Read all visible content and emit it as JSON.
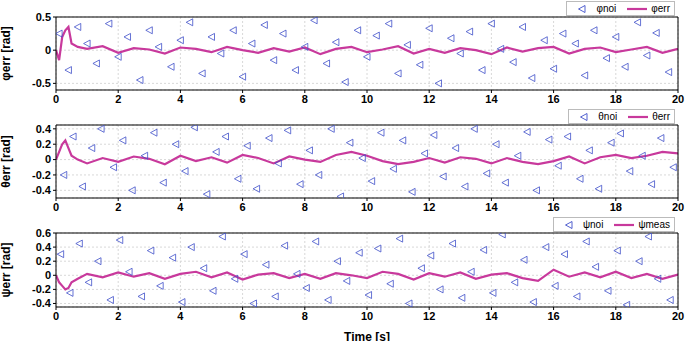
{
  "chart_data": [
    {
      "type": "line",
      "ylabel": "φerr [rad]",
      "xlim": [
        0,
        20
      ],
      "xticks": [
        0,
        2,
        4,
        6,
        8,
        10,
        12,
        14,
        16,
        18,
        20
      ],
      "ylim": [
        -0.6,
        0.5
      ],
      "yticks": [
        -0.5,
        0,
        0.5
      ],
      "grid": true,
      "legend": "upper right",
      "series": [
        {
          "name": "φnoi",
          "type": "scatter",
          "color": "#3f4fc9",
          "marker": "triangle-left",
          "x": [
            0.1,
            0.4,
            0.7,
            1.0,
            1.3,
            1.7,
            2.0,
            2.3,
            2.7,
            3.0,
            3.3,
            3.7,
            4.0,
            4.3,
            4.7,
            5.0,
            5.3,
            5.7,
            6.0,
            6.3,
            6.7,
            7.0,
            7.3,
            7.7,
            8.0,
            8.3,
            8.7,
            9.0,
            9.3,
            9.7,
            10.0,
            10.3,
            10.7,
            11.0,
            11.3,
            11.7,
            12.0,
            12.3,
            12.7,
            13.0,
            13.3,
            13.7,
            14.0,
            14.3,
            14.7,
            15.0,
            15.3,
            15.7,
            16.0,
            16.3,
            16.7,
            17.0,
            17.3,
            17.7,
            18.0,
            18.3,
            18.7,
            19.0,
            19.3,
            19.7
          ],
          "values": [
            0.25,
            -0.3,
            0.35,
            0.1,
            -0.2,
            0.4,
            -0.1,
            0.2,
            -0.45,
            0.3,
            0.05,
            -0.25,
            0.15,
            0.42,
            -0.35,
            0.2,
            -0.05,
            0.3,
            -0.4,
            0.1,
            0.38,
            -0.15,
            0.25,
            -0.3,
            0.05,
            0.45,
            -0.2,
            0.12,
            -0.48,
            0.3,
            -0.1,
            0.22,
            0.4,
            -0.35,
            0.08,
            -0.22,
            0.33,
            -0.5,
            0.18,
            -0.05,
            0.28,
            -0.3,
            0.4,
            0.02,
            -0.18,
            0.35,
            -0.42,
            0.15,
            -0.28,
            0.25,
            0.1,
            -0.38,
            0.3,
            -0.12,
            0.2,
            -0.25,
            0.42,
            -0.08,
            0.26,
            -0.33
          ]
        },
        {
          "name": "φerr",
          "type": "line",
          "color": "#c8399c",
          "line_style": "solid",
          "x": [
            0,
            0.1,
            0.2,
            0.3,
            0.4,
            0.5,
            0.7,
            1,
            1.5,
            2,
            2.5,
            3,
            3.5,
            4,
            4.5,
            5,
            5.5,
            6,
            6.5,
            7,
            7.5,
            8,
            8.5,
            9,
            9.5,
            10,
            10.5,
            11,
            11.5,
            12,
            12.5,
            13,
            13.5,
            14,
            14.5,
            15,
            15.5,
            16,
            16.5,
            17,
            17.5,
            18,
            18.5,
            19,
            19.5,
            20
          ],
          "values": [
            0,
            -0.15,
            0.2,
            0.3,
            0.35,
            0.1,
            0.05,
            0.02,
            0.06,
            -0.04,
            0.03,
            0.01,
            -0.05,
            0.04,
            0.02,
            -0.03,
            0.05,
            0.0,
            -0.04,
            0.03,
            -0.02,
            0.04,
            -0.06,
            0.02,
            0.05,
            -0.03,
            0.01,
            0.06,
            -0.05,
            0.02,
            -0.04,
            0.03,
            0.0,
            -0.06,
            0.04,
            -0.02,
            0.03,
            0.05,
            -0.05,
            0.02,
            0.04,
            -0.03,
            0.01,
            0.05,
            -0.04,
            0.02
          ]
        }
      ]
    },
    {
      "type": "line",
      "ylabel": "θerr [rad]",
      "xlim": [
        0,
        20
      ],
      "xticks": [
        0,
        2,
        4,
        6,
        8,
        10,
        12,
        14,
        16,
        18,
        20
      ],
      "ylim": [
        -0.5,
        0.45
      ],
      "yticks": [
        -0.4,
        -0.2,
        0,
        0.2,
        0.4
      ],
      "grid": true,
      "legend": "upper right",
      "series": [
        {
          "name": "θnoi",
          "type": "scatter",
          "color": "#3f4fc9",
          "marker": "triangle-left",
          "x": [
            0.25,
            0.55,
            0.85,
            1.15,
            1.45,
            1.85,
            2.15,
            2.45,
            2.85,
            3.15,
            3.45,
            3.85,
            4.15,
            4.45,
            4.85,
            5.15,
            5.45,
            5.85,
            6.15,
            6.45,
            6.85,
            7.15,
            7.45,
            7.85,
            8.15,
            8.45,
            8.85,
            9.15,
            9.45,
            9.85,
            10.15,
            10.45,
            10.85,
            11.15,
            11.45,
            11.85,
            12.15,
            12.45,
            12.85,
            13.15,
            13.45,
            13.85,
            14.15,
            14.45,
            14.85,
            15.15,
            15.45,
            15.85,
            16.15,
            16.45,
            16.85,
            17.15,
            17.45,
            17.85,
            18.15,
            18.45,
            18.85,
            19.15,
            19.45,
            19.85
          ],
          "values": [
            -0.2,
            0.3,
            -0.35,
            0.15,
            0.4,
            -0.1,
            0.25,
            -0.4,
            0.05,
            0.35,
            -0.3,
            0.2,
            -0.15,
            0.42,
            -0.45,
            0.1,
            0.3,
            -0.25,
            0.18,
            -0.38,
            0.28,
            -0.05,
            0.38,
            -0.32,
            0.12,
            -0.2,
            0.4,
            -0.48,
            0.22,
            0.02,
            -0.28,
            0.35,
            -0.12,
            0.25,
            -0.42,
            0.08,
            0.32,
            -0.22,
            0.15,
            -0.35,
            0.4,
            -0.18,
            0.2,
            -0.3,
            0.05,
            0.36,
            -0.4,
            0.26,
            -0.08,
            0.3,
            -0.25,
            0.12,
            -0.38,
            0.22,
            0.34,
            -0.15,
            0.05,
            -0.32,
            0.28,
            -0.1
          ]
        },
        {
          "name": "θerr",
          "type": "line",
          "color": "#c8399c",
          "line_style": "solid",
          "x": [
            0,
            0.1,
            0.2,
            0.3,
            0.4,
            0.5,
            0.7,
            1,
            1.5,
            2,
            2.5,
            3,
            3.5,
            4,
            4.5,
            5,
            5.5,
            6,
            6.5,
            7,
            7.5,
            8,
            8.5,
            9,
            9.5,
            10,
            10.5,
            11,
            11.5,
            12,
            12.5,
            13,
            13.5,
            14,
            14.5,
            15,
            15.5,
            16,
            16.5,
            17,
            17.5,
            18,
            18.5,
            19,
            19.5,
            20
          ],
          "values": [
            0,
            0.1,
            0.2,
            0.25,
            0.15,
            0.05,
            0,
            -0.05,
            0.02,
            -0.03,
            0.04,
            0.01,
            -0.06,
            0.05,
            -0.02,
            0.03,
            -0.04,
            0.06,
            0.02,
            -0.05,
            0.04,
            0.0,
            -0.03,
            0.06,
            0.1,
            0.05,
            -0.02,
            -0.06,
            -0.03,
            0.02,
            -0.04,
            0.03,
            0.01,
            -0.05,
            0.02,
            -0.03,
            -0.06,
            -0.02,
            0.04,
            -0.05,
            0.03,
            0.06,
            0.02,
            0.05,
            0.1,
            0.08
          ]
        }
      ]
    },
    {
      "type": "line",
      "ylabel": "ψerr [rad]",
      "xlabel": "Time [s]",
      "xlim": [
        0,
        20
      ],
      "xticks": [
        0,
        2,
        4,
        6,
        8,
        10,
        12,
        14,
        16,
        18,
        20
      ],
      "ylim": [
        -0.45,
        0.6
      ],
      "yticks": [
        -0.4,
        -0.2,
        0,
        0.2,
        0.4,
        0.6
      ],
      "grid": true,
      "legend": "upper right",
      "series": [
        {
          "name": "ψnoi",
          "type": "scatter",
          "color": "#3f4fc9",
          "marker": "triangle-left",
          "x": [
            0.15,
            0.45,
            0.75,
            1.05,
            1.35,
            1.75,
            2.05,
            2.35,
            2.75,
            3.05,
            3.35,
            3.75,
            4.05,
            4.35,
            4.75,
            5.05,
            5.35,
            5.75,
            6.05,
            6.35,
            6.75,
            7.05,
            7.35,
            7.75,
            8.05,
            8.35,
            8.75,
            9.05,
            9.35,
            9.75,
            10.05,
            10.35,
            10.75,
            11.05,
            11.35,
            11.75,
            12.05,
            12.35,
            12.75,
            13.05,
            13.35,
            13.75,
            14.05,
            14.35,
            14.75,
            15.05,
            15.35,
            15.75,
            16.05,
            16.35,
            16.75,
            17.05,
            17.35,
            17.75,
            18.05,
            18.35,
            18.75,
            19.05,
            19.35,
            19.75
          ],
          "values": [
            0.3,
            -0.25,
            0.45,
            -0.1,
            0.2,
            -0.35,
            0.5,
            0.05,
            -0.3,
            0.35,
            -0.15,
            0.25,
            -0.38,
            0.4,
            0.1,
            -0.22,
            0.55,
            -0.05,
            0.3,
            -0.4,
            0.15,
            -0.3,
            0.42,
            0.02,
            -0.18,
            0.48,
            -0.35,
            0.2,
            -0.08,
            0.32,
            -0.28,
            0.38,
            -0.12,
            0.52,
            -0.4,
            0.1,
            0.28,
            -0.2,
            0.45,
            -0.32,
            0.05,
            0.36,
            -0.25,
            0.58,
            -0.1,
            0.22,
            -0.38,
            0.4,
            -0.15,
            0.3,
            -0.3,
            0.48,
            0.12,
            -0.22,
            0.35,
            -0.42,
            0.2,
            0.55,
            -0.05,
            -0.35
          ]
        },
        {
          "name": "ψmeas",
          "type": "line",
          "color": "#c8399c",
          "line_style": "solid",
          "x": [
            0,
            0.1,
            0.2,
            0.3,
            0.4,
            0.5,
            0.7,
            1,
            1.5,
            2,
            2.5,
            3,
            3.5,
            4,
            4.5,
            5,
            5.5,
            6,
            6.5,
            7,
            7.5,
            8,
            8.5,
            9,
            9.5,
            10,
            10.5,
            11,
            11.5,
            12,
            12.5,
            13,
            13.5,
            14,
            14.5,
            15,
            15.5,
            16,
            16.5,
            17,
            17.5,
            18,
            18.5,
            19,
            19.5,
            20
          ],
          "values": [
            0,
            -0.1,
            -0.15,
            -0.2,
            -0.18,
            -0.1,
            -0.05,
            0.02,
            -0.03,
            0.04,
            -0.02,
            0.03,
            -0.05,
            0.02,
            0.05,
            -0.03,
            0.04,
            -0.06,
            0.01,
            0.03,
            -0.04,
            0.02,
            -0.05,
            0.03,
            0.0,
            -0.04,
            0.05,
            0.02,
            -0.06,
            0.03,
            -0.02,
            0.04,
            -0.05,
            0.01,
            0.03,
            -0.04,
            -0.08,
            0.08,
            -0.02,
            0.04,
            -0.03,
            0.05,
            -0.04,
            0.02,
            -0.05,
            0.01
          ]
        }
      ]
    }
  ]
}
